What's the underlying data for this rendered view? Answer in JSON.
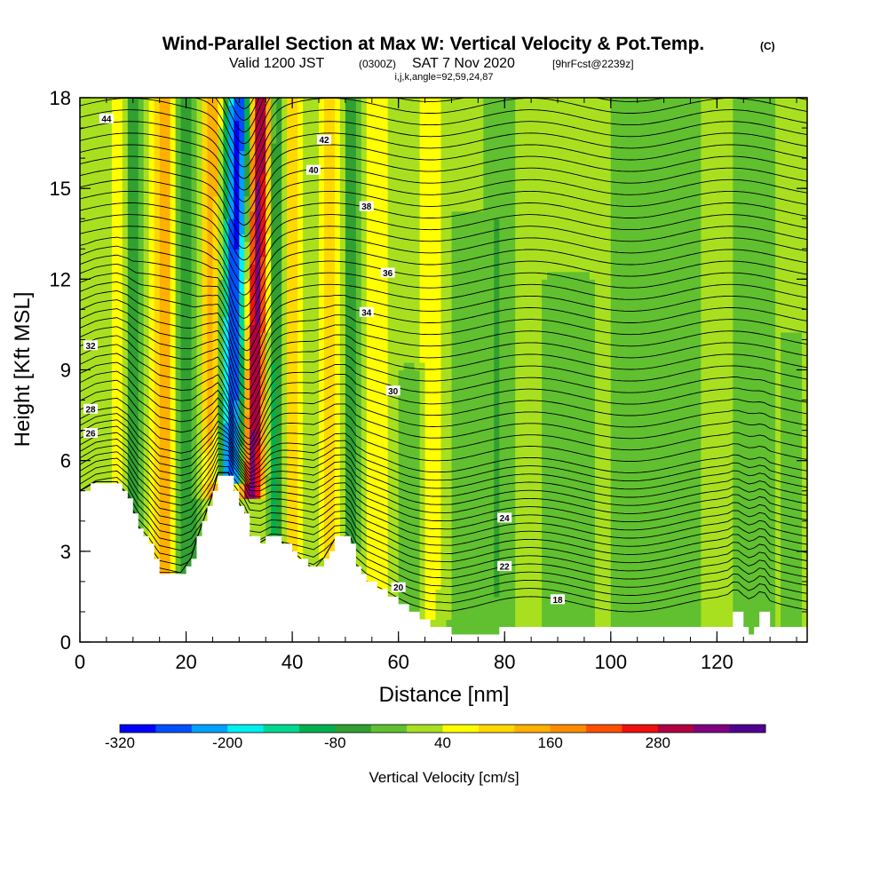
{
  "title": {
    "main": "Wind-Parallel Section at Max W: Vertical Velocity & Pot.Temp.",
    "copyright": "(C)",
    "valid_prefix": "Valid 1200 JST",
    "valid_utc": "(0300Z)",
    "valid_date": "SAT 7 Nov 2020",
    "forecast": "[9hrFcst@2239z]",
    "params": "i,j,k,angle=92,59,24,87"
  },
  "chart_data": {
    "type": "heatmap",
    "xlabel": "Distance [nm]",
    "ylabel": "Height [Kft MSL]",
    "xlim": [
      0,
      137
    ],
    "ylim": [
      0,
      18
    ],
    "x_ticks": [
      "0",
      "20",
      "40",
      "60",
      "80",
      "100",
      "120"
    ],
    "y_ticks": [
      "0",
      "3",
      "6",
      "9",
      "12",
      "15",
      "18"
    ],
    "colorbar": {
      "label": "Vertical Velocity [cm/s]",
      "tick_labels": [
        "-320",
        "-200",
        "-80",
        "40",
        "160",
        "280"
      ],
      "tick_values": [
        -320,
        -200,
        -80,
        40,
        160,
        280
      ],
      "levels": [
        -320,
        -280,
        -240,
        -200,
        -160,
        -120,
        -80,
        -40,
        0,
        40,
        80,
        120,
        160,
        200,
        240,
        280,
        320,
        360
      ],
      "colors": [
        "#0000ff",
        "#0050ff",
        "#00a0ff",
        "#00f0f0",
        "#00d890",
        "#00b050",
        "#30a030",
        "#60c030",
        "#a8e020",
        "#ffff00",
        "#ffd800",
        "#ffb000",
        "#ff8c00",
        "#ff5000",
        "#f01010",
        "#b00040",
        "#800080",
        "#500090"
      ]
    },
    "theta_contours_label_values": [
      18,
      20,
      22,
      24,
      26,
      28,
      30,
      32,
      34,
      36,
      38,
      40,
      42,
      44
    ],
    "terrain_height_kft": [
      [
        0,
        5.0
      ],
      [
        3,
        5.3
      ],
      [
        7,
        5.3
      ],
      [
        9,
        4.8
      ],
      [
        11,
        3.8
      ],
      [
        13,
        3.2
      ],
      [
        15,
        2.3
      ],
      [
        17,
        2.3
      ],
      [
        19,
        2.3
      ],
      [
        21,
        2.8
      ],
      [
        22,
        3.4
      ],
      [
        24,
        4.4
      ],
      [
        25,
        4.9
      ],
      [
        26,
        5.6
      ],
      [
        28,
        5.6
      ],
      [
        29,
        5.0
      ],
      [
        30,
        4.6
      ],
      [
        31,
        4.2
      ],
      [
        32,
        3.5
      ],
      [
        34,
        3.3
      ],
      [
        36,
        3.5
      ],
      [
        38,
        3.3
      ],
      [
        40,
        3.0
      ],
      [
        42,
        2.7
      ],
      [
        44,
        2.4
      ],
      [
        46,
        2.8
      ],
      [
        48,
        3.4
      ],
      [
        50,
        3.5
      ],
      [
        51,
        3.2
      ],
      [
        52,
        2.5
      ],
      [
        54,
        2.0
      ],
      [
        56,
        1.8
      ],
      [
        58,
        1.6
      ],
      [
        60,
        1.3
      ],
      [
        62,
        1.0
      ],
      [
        64,
        0.8
      ],
      [
        66,
        0.6
      ],
      [
        68,
        0.5
      ],
      [
        70,
        0.3
      ],
      [
        74,
        0.3
      ],
      [
        80,
        0.4
      ],
      [
        90,
        0.4
      ],
      [
        100,
        0.4
      ],
      [
        110,
        0.4
      ],
      [
        118,
        0.4
      ],
      [
        120,
        0.4
      ],
      [
        122,
        0.6
      ],
      [
        123,
        1.0
      ],
      [
        124,
        1.0
      ],
      [
        125,
        0.6
      ],
      [
        126,
        0.3
      ],
      [
        127,
        0.6
      ],
      [
        128,
        1.1
      ],
      [
        129,
        1.1
      ],
      [
        130,
        0.5
      ],
      [
        132,
        0.4
      ],
      [
        137,
        0.4
      ]
    ],
    "w_features": [
      {
        "x": 29,
        "y_min": 5.5,
        "y_max": 18,
        "w": -300,
        "half_width_nm": 2.5
      },
      {
        "x": 33,
        "y_min": 5.0,
        "y_max": 18,
        "w": 340,
        "half_width_nm": 2.0
      },
      {
        "x": 25,
        "y_min": 5.0,
        "y_max": 18,
        "w": 140,
        "half_width_nm": 2.0
      },
      {
        "x": 20,
        "y_min": 2.3,
        "y_max": 18,
        "w": -100,
        "half_width_nm": 2.0
      },
      {
        "x": 16,
        "y_min": 2.3,
        "y_max": 18,
        "w": 120,
        "half_width_nm": 2.5
      },
      {
        "x": 10,
        "y_min": 3.0,
        "y_max": 18,
        "w": -70,
        "half_width_nm": 1.5
      },
      {
        "x": 7,
        "y_min": 5.0,
        "y_max": 18,
        "w": 60,
        "half_width_nm": 1.5
      },
      {
        "x": 37,
        "y_min": 3.5,
        "y_max": 18,
        "w": -120,
        "half_width_nm": 1.5
      },
      {
        "x": 40,
        "y_min": 3.0,
        "y_max": 18,
        "w": 90,
        "half_width_nm": 2.0
      },
      {
        "x": 47,
        "y_min": 3.0,
        "y_max": 18,
        "w": 80,
        "half_width_nm": 2.0
      },
      {
        "x": 51,
        "y_min": 3.2,
        "y_max": 18,
        "w": -80,
        "half_width_nm": 1.3
      },
      {
        "x": 56,
        "y_min": 2.0,
        "y_max": 18,
        "w": 70,
        "half_width_nm": 2.0
      },
      {
        "x": 63,
        "y_min": 1.0,
        "y_max": 9.0,
        "w": -40,
        "half_width_nm": 2.5
      },
      {
        "x": 73,
        "y_min": 0.3,
        "y_max": 14.0,
        "w": -40,
        "half_width_nm": 3.5
      },
      {
        "x": 66,
        "y_min": 1.0,
        "y_max": 18,
        "w": 60,
        "half_width_nm": 2.5
      },
      {
        "x": 79,
        "y_min": 0.3,
        "y_max": 18,
        "w": -50,
        "half_width_nm": 2.0
      },
      {
        "x": 92,
        "y_min": 0.3,
        "y_max": 12.0,
        "w": -40,
        "half_width_nm": 4.0
      },
      {
        "x": 105,
        "y_min": 0.3,
        "y_max": 18,
        "w": -40,
        "half_width_nm": 4.0
      },
      {
        "x": 114,
        "y_min": 0.3,
        "y_max": 18,
        "w": -45,
        "half_width_nm": 2.5
      },
      {
        "x": 127,
        "y_min": 0.3,
        "y_max": 18,
        "w": -45,
        "half_width_nm": 3.0
      },
      {
        "x": 134,
        "y_min": 0.3,
        "y_max": 10.0,
        "w": -40,
        "half_width_nm": 1.5
      }
    ],
    "contour_labels": [
      {
        "text": "44",
        "x": 5,
        "y": 17.3,
        "t": 44
      },
      {
        "text": "42",
        "x": 46,
        "y": 16.6,
        "t": 42
      },
      {
        "text": "40",
        "x": 44,
        "y": 15.6,
        "t": 40
      },
      {
        "text": "38",
        "x": 54,
        "y": 14.4,
        "t": 38
      },
      {
        "text": "36",
        "x": 58,
        "y": 12.2,
        "t": 36
      },
      {
        "text": "34",
        "x": 54,
        "y": 10.9,
        "t": 34
      },
      {
        "text": "32",
        "x": 2,
        "y": 9.8,
        "t": 32
      },
      {
        "text": "30",
        "x": 59,
        "y": 8.3,
        "t": 30
      },
      {
        "text": "28",
        "x": 2,
        "y": 7.7,
        "t": 28
      },
      {
        "text": "26",
        "x": 2,
        "y": 6.9,
        "t": 26
      },
      {
        "text": "24",
        "x": 80,
        "y": 4.1,
        "t": 24
      },
      {
        "text": "22",
        "x": 80,
        "y": 2.5,
        "t": 22
      },
      {
        "text": "20",
        "x": 60,
        "y": 1.8,
        "t": 20
      },
      {
        "text": "18",
        "x": 90,
        "y": 1.4,
        "t": 18
      }
    ]
  }
}
